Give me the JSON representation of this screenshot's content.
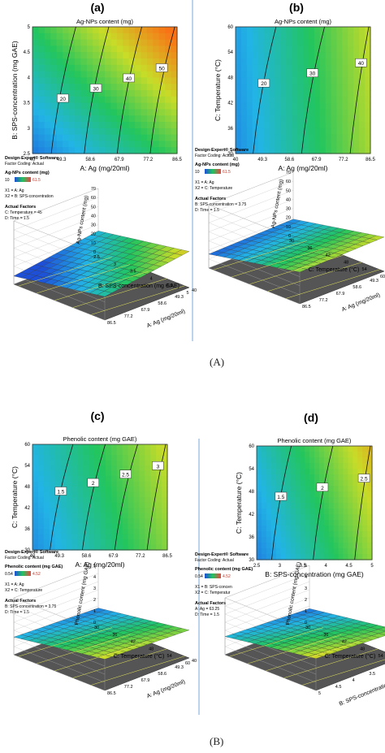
{
  "colors": {
    "low": "#1d4fd8",
    "mid": "#22c55e",
    "high": "#f97316",
    "divider": "#7aa7d8"
  },
  "group_labels": [
    "(A)",
    "(B)"
  ],
  "design_info": {
    "software": "Design-Expert® Software",
    "coding": "Factor Coding: Actual",
    "actual_factors_heading": "Actual Factors"
  },
  "chart_data": [
    {
      "panel": "(a)",
      "type": "heatmap",
      "title": "Ag-NPs content (mg)",
      "xlabel": "A: Ag  (mg/20ml)",
      "ylabel": "B: SPS-concentration (mg GAE)",
      "x_ticks": [
        "40",
        "49.3",
        "58.6",
        "67.9",
        "77.2",
        "86.5"
      ],
      "y_ticks": [
        "2.5",
        "3",
        "3.5",
        "4",
        "4.5",
        "5"
      ],
      "contour_labels": [
        "20",
        "30",
        "40",
        "50"
      ],
      "legend_title": "Ag-NPs content (mg)",
      "legend_min": "10",
      "legend_max": "61.5",
      "factor_lines": [
        "X1 = A: Ag",
        "X2 = B: SPS-concentration"
      ],
      "actual_lines": [
        "C: Temperature = 45",
        "D: Time = 1.5"
      ],
      "surface": {
        "zlabel": "Ag-NPs content (mg)",
        "z_ticks": [
          "0",
          "10",
          "20",
          "30",
          "40",
          "50",
          "60",
          "70"
        ],
        "x_ticks": [
          "40",
          "49.3",
          "58.6",
          "67.9",
          "77.2",
          "86.5"
        ],
        "y_ticks": [
          "2.5",
          "3",
          "3.5",
          "4",
          "4.5",
          "5"
        ],
        "xlabel": "A: Ag  (mg/20ml)",
        "ylabel": "B: SPS-concentration (mg GAE)",
        "low": "left",
        "high": "front-right"
      }
    },
    {
      "panel": "(b)",
      "type": "heatmap",
      "title": "Ag-NPs content (mg)",
      "xlabel": "A: Ag  (mg/20ml)",
      "ylabel": "C: Temperature (°C)",
      "x_ticks": [
        "40",
        "49.3",
        "58.6",
        "67.9",
        "77.2",
        "86.5"
      ],
      "y_ticks": [
        "30",
        "36",
        "42",
        "48",
        "54",
        "60"
      ],
      "contour_labels": [
        "20",
        "30",
        "40"
      ],
      "legend_title": "Ag-NPs content (mg)",
      "legend_min": "10",
      "legend_max": "61.5",
      "factor_lines": [
        "X1 = A: Ag",
        "X2 = C: Temperature"
      ],
      "actual_lines": [
        "B: SPS-concentration = 3.75",
        "D: Time = 1.5"
      ],
      "surface": {
        "zlabel": "Ag-NPs content (mg)",
        "z_ticks": [
          "0",
          "10",
          "20",
          "30",
          "40",
          "50",
          "60",
          "70"
        ],
        "x_ticks": [
          "40",
          "49.3",
          "58.6",
          "67.9",
          "77.2",
          "86.5"
        ],
        "y_ticks": [
          "30",
          "36",
          "42",
          "48",
          "54",
          "60"
        ],
        "xlabel": "A: Ag  (mg/20ml)",
        "ylabel": "C: Temperature (°C)",
        "low": "left",
        "high": "front-right"
      }
    },
    {
      "panel": "(c)",
      "type": "heatmap",
      "title": "Phenolic content (mg GAE)",
      "xlabel": "A: Ag  (mg/20ml)",
      "ylabel": "C: Temperature (°C)",
      "x_ticks": [
        "40",
        "49.3",
        "58.6",
        "67.9",
        "77.2",
        "86.5"
      ],
      "y_ticks": [
        "30",
        "36",
        "42",
        "48",
        "54",
        "60"
      ],
      "contour_labels": [
        "1.5",
        "2",
        "2.5",
        "3"
      ],
      "legend_title": "Phenolic content (mg GAE)",
      "legend_min": "0.54",
      "legend_max": "4.52",
      "factor_lines": [
        "X1 = A: Ag",
        "X2 = C: Temperature"
      ],
      "actual_lines": [
        "B: SPS-concentration = 3.75",
        "D: Time = 1.5"
      ],
      "surface": {
        "zlabel": "Phenolic content (mg GAE)",
        "z_ticks": [
          "0",
          "1",
          "2",
          "3",
          "4",
          "5"
        ],
        "x_ticks": [
          "40",
          "49.3",
          "58.6",
          "67.9",
          "77.2",
          "86.5"
        ],
        "y_ticks": [
          "30",
          "36",
          "42",
          "48",
          "54",
          "60"
        ],
        "xlabel": "A: Ag  (mg/20ml)",
        "ylabel": "C: Temperature (°C)",
        "low": "left",
        "high": "right"
      }
    },
    {
      "panel": "(d)",
      "type": "heatmap",
      "title": "Phenolic content (mg GAE)",
      "xlabel": "B: SPS-concentration (mg GAE)",
      "ylabel": "C: Temperature (°C)",
      "x_ticks": [
        "2.5",
        "3",
        "3.5",
        "4",
        "4.5",
        "5"
      ],
      "y_ticks": [
        "30",
        "36",
        "42",
        "48",
        "54",
        "60"
      ],
      "contour_labels": [
        "1.5",
        "2",
        "2.5"
      ],
      "legend_title": "Phenolic content (mg GAE)",
      "legend_min": "0.54",
      "legend_max": "4.52",
      "factor_lines": [
        "X1 = B: SPS-concen",
        "X2 = C: Temperatur"
      ],
      "actual_lines": [
        "A: Ag = 63.25",
        "D: Time = 1.5"
      ],
      "surface": {
        "zlabel": "Phenolic content (mg GAE)",
        "z_ticks": [
          "0",
          "1",
          "2",
          "3",
          "4",
          "5"
        ],
        "x_ticks": [
          "2.5",
          "3",
          "3.5",
          "4",
          "4.5",
          "5"
        ],
        "y_ticks": [
          "30",
          "36",
          "42",
          "48",
          "54",
          "60"
        ],
        "xlabel": "B: SPS-concentration (mg GAE)",
        "ylabel": "C: Temperature (°C)",
        "low": "left",
        "high": "right"
      }
    }
  ]
}
